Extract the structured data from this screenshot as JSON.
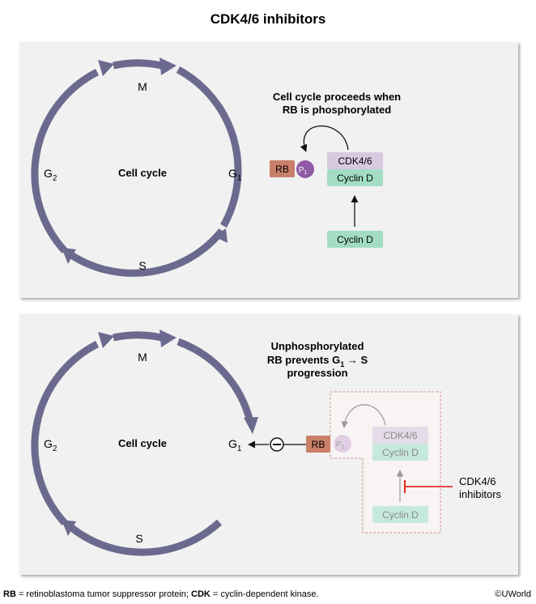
{
  "title": "CDK4/6 inhibitors",
  "top_panel": {
    "cycle_label": "Cell cycle",
    "phases": {
      "m": "M",
      "g1": "G",
      "g1_sub": "1",
      "s": "S",
      "g2": "G",
      "g2_sub": "2"
    },
    "caption_line1": "Cell cycle proceeds when",
    "caption_line2": "RB is phosphorylated",
    "rb": "RB",
    "p": "P",
    "p_sub": "1",
    "cdk": "CDK4/6",
    "cyclin_bound": "Cyclin D",
    "cyclin_free": "Cyclin D"
  },
  "bottom_panel": {
    "cycle_label": "Cell cycle",
    "phases": {
      "m": "M",
      "g1": "G",
      "g1_sub": "1",
      "s": "S",
      "g2": "G",
      "g2_sub": "2"
    },
    "caption_line1": "Unphosphorylated",
    "caption_line2_a": "RB prevents G",
    "caption_line2_sub": "1",
    "caption_line2_b": "S",
    "caption_line3": "progression",
    "rb": "RB",
    "p": "P",
    "p_sub": "1",
    "cdk": "CDK4/6",
    "cyclin_bound": "Cyclin D",
    "cyclin_free": "Cyclin D",
    "inhibitor_line1": "CDK4/6",
    "inhibitor_line2": "inhibitors"
  },
  "footer": {
    "rb_abbr": "RB",
    "rb_def": " = retinoblastoma tumor suppressor protein; ",
    "cdk_abbr": "CDK",
    "cdk_def": " = cyclin-dependent kinase."
  },
  "copyright": "©UWorld",
  "colors": {
    "cycle": "#6b6a8e",
    "rb": "#c97f69",
    "cyclin": "#a3dcc4",
    "cdk": "#d9c9df",
    "phospho": "#8e5aa6",
    "inhibitor": "#e0322b"
  }
}
